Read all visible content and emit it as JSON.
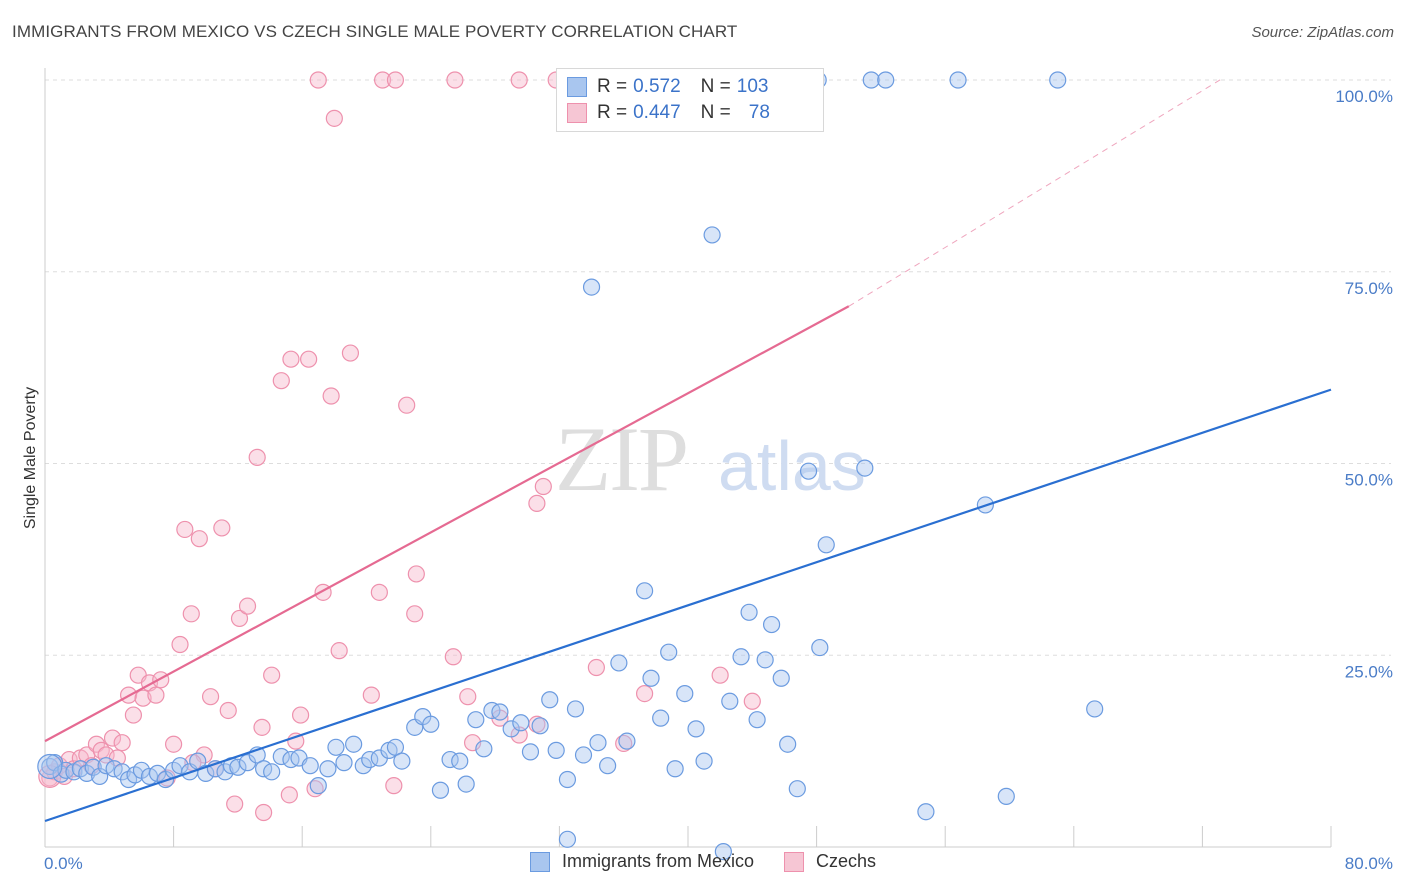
{
  "title": "IMMIGRANTS FROM MEXICO VS CZECH SINGLE MALE POVERTY CORRELATION CHART",
  "source": "Source: ZipAtlas.com",
  "watermark": {
    "zip": "ZIP",
    "atlas": "atlas"
  },
  "legend": {
    "rows": [
      {
        "r_label": "R =",
        "r_value": "0.572",
        "n_label": "N =",
        "n_value": "103"
      },
      {
        "r_label": "R =",
        "r_value": "0.447",
        "n_label": "N =",
        "n_value": "78"
      }
    ]
  },
  "bottom_legend": [
    "Immigrants from Mexico",
    "Czechs"
  ],
  "colors": {
    "blue_fill": "#a9c6ef",
    "blue_stroke": "#6b9be0",
    "blue_line": "#2a6fd1",
    "pink_fill": "#f6b9cb",
    "pink_stroke": "#ee91ad",
    "pink_line": "#e56a92",
    "tick_text": "#4a7cc7",
    "grid": "#dddddd"
  },
  "chart_data": {
    "type": "scatter",
    "title": "IMMIGRANTS FROM MEXICO VS CZECH SINGLE MALE POVERTY CORRELATION CHART",
    "xlabel": "",
    "ylabel": "Single Male Poverty",
    "xlim": [
      0,
      80
    ],
    "ylim": [
      0,
      100
    ],
    "x_tick_labels": [
      "0.0%",
      "80.0%"
    ],
    "y_ticks": [
      25,
      50,
      75,
      100
    ],
    "y_tick_labels": [
      "25.0%",
      "50.0%",
      "75.0%",
      "100.0%"
    ],
    "series": [
      {
        "name": "Immigrants from Mexico",
        "r": 0.572,
        "n": 103,
        "trend": {
          "x0": 0,
          "y0": 0,
          "x1": 80,
          "y1": 59.5
        },
        "points": [
          [
            0.3,
            10.5
          ],
          [
            0.6,
            11.0
          ],
          [
            1.0,
            9.5
          ],
          [
            1.3,
            10.0
          ],
          [
            1.8,
            9.8
          ],
          [
            2.2,
            10.2
          ],
          [
            2.6,
            9.6
          ],
          [
            3.0,
            10.4
          ],
          [
            3.4,
            9.2
          ],
          [
            3.8,
            10.6
          ],
          [
            4.3,
            10.2
          ],
          [
            4.8,
            9.8
          ],
          [
            5.2,
            8.8
          ],
          [
            5.6,
            9.4
          ],
          [
            6.0,
            10.0
          ],
          [
            6.5,
            9.2
          ],
          [
            7.0,
            9.6
          ],
          [
            7.5,
            8.8
          ],
          [
            8.0,
            10.0
          ],
          [
            8.4,
            10.6
          ],
          [
            9.0,
            9.8
          ],
          [
            9.5,
            11.2
          ],
          [
            10.0,
            9.6
          ],
          [
            10.6,
            10.2
          ],
          [
            11.2,
            9.8
          ],
          [
            11.6,
            10.6
          ],
          [
            12.0,
            10.4
          ],
          [
            12.6,
            11.0
          ],
          [
            13.2,
            12.0
          ],
          [
            13.6,
            10.2
          ],
          [
            14.1,
            9.8
          ],
          [
            14.7,
            11.8
          ],
          [
            15.3,
            11.4
          ],
          [
            15.8,
            11.6
          ],
          [
            16.5,
            10.6
          ],
          [
            17.0,
            8.0
          ],
          [
            17.6,
            10.2
          ],
          [
            18.1,
            13.0
          ],
          [
            18.6,
            11.0
          ],
          [
            19.2,
            13.4
          ],
          [
            19.8,
            10.6
          ],
          [
            20.2,
            11.4
          ],
          [
            20.8,
            11.6
          ],
          [
            21.4,
            12.6
          ],
          [
            21.8,
            13.0
          ],
          [
            22.2,
            11.2
          ],
          [
            23.0,
            15.6
          ],
          [
            23.5,
            17.0
          ],
          [
            24.0,
            16.0
          ],
          [
            24.6,
            7.4
          ],
          [
            25.2,
            11.4
          ],
          [
            25.8,
            11.2
          ],
          [
            26.2,
            8.2
          ],
          [
            26.8,
            16.6
          ],
          [
            27.3,
            12.8
          ],
          [
            27.8,
            17.8
          ],
          [
            28.3,
            17.6
          ],
          [
            29.0,
            15.4
          ],
          [
            29.6,
            16.2
          ],
          [
            30.2,
            12.4
          ],
          [
            30.8,
            15.8
          ],
          [
            31.4,
            19.2
          ],
          [
            31.8,
            12.6
          ],
          [
            32.5,
            8.8
          ],
          [
            33.0,
            18.0
          ],
          [
            33.5,
            12.0
          ],
          [
            34.4,
            13.6
          ],
          [
            35.0,
            10.6
          ],
          [
            35.7,
            24.0
          ],
          [
            36.2,
            13.8
          ],
          [
            37.3,
            33.4
          ],
          [
            37.7,
            22.0
          ],
          [
            38.3,
            16.8
          ],
          [
            38.8,
            25.4
          ],
          [
            39.2,
            10.2
          ],
          [
            39.8,
            20.0
          ],
          [
            40.5,
            15.4
          ],
          [
            41.0,
            11.2
          ],
          [
            41.5,
            79.8
          ],
          [
            42.2,
            -0.6
          ],
          [
            42.6,
            19.0
          ],
          [
            43.3,
            24.8
          ],
          [
            43.8,
            30.6
          ],
          [
            44.3,
            16.6
          ],
          [
            44.8,
            24.4
          ],
          [
            45.2,
            29.0
          ],
          [
            45.8,
            22.0
          ],
          [
            46.2,
            13.4
          ],
          [
            46.8,
            7.6
          ],
          [
            47.5,
            49.0
          ],
          [
            48.2,
            26.0
          ],
          [
            48.6,
            39.4
          ],
          [
            51.0,
            49.4
          ],
          [
            54.8,
            4.6
          ],
          [
            58.5,
            44.6
          ],
          [
            59.8,
            6.6
          ],
          [
            65.3,
            18.0
          ],
          [
            48.1,
            100
          ],
          [
            51.4,
            100
          ],
          [
            52.3,
            100
          ],
          [
            56.8,
            100
          ],
          [
            63.0,
            100
          ],
          [
            34.0,
            73.0
          ],
          [
            32.5,
            1
          ]
        ]
      },
      {
        "name": "Czechs",
        "r": 0.447,
        "n": 78,
        "trend": {
          "x0": 0,
          "y0": 13.8,
          "x1": 50,
          "y1": 70.5,
          "dashed_to": {
            "x": 80,
            "y": 104
          }
        },
        "points": [
          [
            0.3,
            9.0
          ],
          [
            0.6,
            9.8
          ],
          [
            0.9,
            10.6
          ],
          [
            1.2,
            9.2
          ],
          [
            1.5,
            11.4
          ],
          [
            1.8,
            10.2
          ],
          [
            2.2,
            11.6
          ],
          [
            2.6,
            12.0
          ],
          [
            2.9,
            10.6
          ],
          [
            3.2,
            13.4
          ],
          [
            3.5,
            12.6
          ],
          [
            3.8,
            12.0
          ],
          [
            4.2,
            14.2
          ],
          [
            4.5,
            11.6
          ],
          [
            4.8,
            13.6
          ],
          [
            5.2,
            19.8
          ],
          [
            5.5,
            17.2
          ],
          [
            5.8,
            22.4
          ],
          [
            6.1,
            19.4
          ],
          [
            6.5,
            21.4
          ],
          [
            6.9,
            19.8
          ],
          [
            7.2,
            21.8
          ],
          [
            7.6,
            9.0
          ],
          [
            8.0,
            13.4
          ],
          [
            8.4,
            26.4
          ],
          [
            8.7,
            41.4
          ],
          [
            9.1,
            30.4
          ],
          [
            9.6,
            40.2
          ],
          [
            9.9,
            12.0
          ],
          [
            10.3,
            19.6
          ],
          [
            10.6,
            10.2
          ],
          [
            11.0,
            41.6
          ],
          [
            11.4,
            17.8
          ],
          [
            11.8,
            5.6
          ],
          [
            12.1,
            29.8
          ],
          [
            12.6,
            31.4
          ],
          [
            13.2,
            50.8
          ],
          [
            13.5,
            15.6
          ],
          [
            14.1,
            22.4
          ],
          [
            14.7,
            60.8
          ],
          [
            15.2,
            6.8
          ],
          [
            15.3,
            63.6
          ],
          [
            15.6,
            13.8
          ],
          [
            15.9,
            17.2
          ],
          [
            16.4,
            63.6
          ],
          [
            16.8,
            7.6
          ],
          [
            17.3,
            33.2
          ],
          [
            17.8,
            58.8
          ],
          [
            18.3,
            25.6
          ],
          [
            19.0,
            64.4
          ],
          [
            20.8,
            33.2
          ],
          [
            21.7,
            8.0
          ],
          [
            22.5,
            57.6
          ],
          [
            23.1,
            35.6
          ],
          [
            25.4,
            24.8
          ],
          [
            28.3,
            16.8
          ],
          [
            30.6,
            16.0
          ],
          [
            30.6,
            44.8
          ],
          [
            34.3,
            23.4
          ],
          [
            42.0,
            22.4
          ],
          [
            44.0,
            19.0
          ],
          [
            23.0,
            30.4
          ],
          [
            31.0,
            47.0
          ],
          [
            13.6,
            4.5
          ],
          [
            17.0,
            100
          ],
          [
            18.0,
            95
          ],
          [
            21.0,
            100
          ],
          [
            21.8,
            100
          ],
          [
            25.5,
            100
          ],
          [
            29.5,
            100
          ],
          [
            31.8,
            100
          ],
          [
            37.3,
            20.0
          ],
          [
            26.3,
            19.6
          ],
          [
            20.3,
            19.8
          ],
          [
            26.6,
            13.6
          ],
          [
            29.5,
            14.6
          ],
          [
            36.0,
            13.5
          ],
          [
            9.2,
            11.0
          ]
        ]
      }
    ]
  }
}
